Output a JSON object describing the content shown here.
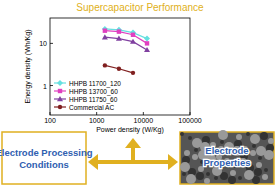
{
  "chart_data": {
    "type": "line",
    "title": "Supercapacitor Performance",
    "x_label": "Power density (W/Kg)",
    "y_label": "Energy density (Wh/Kg)",
    "log": true,
    "legend": "lower-left",
    "grid": false,
    "xlim": [
      100,
      100000
    ],
    "xticks": [
      100,
      1000,
      10000,
      100000
    ],
    "ylim": [
      0.2,
      40
    ],
    "yticks": [
      1,
      10
    ],
    "series": [
      {
        "name": "HHPB 11700_120",
        "color": "#66e0e0",
        "marker": "diamond",
        "x": [
          1500,
          3000,
          6000,
          12000
        ],
        "values": [
          22,
          21,
          18,
          13
        ]
      },
      {
        "name": "HHPB 13700_60",
        "color": "#e040c0",
        "marker": "square",
        "x": [
          1500,
          3000,
          6000,
          12000
        ],
        "values": [
          20,
          19,
          16,
          10
        ]
      },
      {
        "name": "HHPB 11750_60",
        "color": "#8040a0",
        "marker": "triangle",
        "x": [
          1500,
          3000,
          6000,
          12000
        ],
        "values": [
          14,
          13,
          11,
          7
        ]
      },
      {
        "name": "Commercial AC",
        "color": "#802020",
        "marker": "circle",
        "x": [
          1500,
          3000,
          6000
        ],
        "values": [
          3,
          2.5,
          2
        ]
      }
    ]
  },
  "diagram": {
    "boxes": [
      {
        "label": "Electrode Processing Conditions"
      },
      {
        "label": "Electrode Properties"
      }
    ]
  }
}
